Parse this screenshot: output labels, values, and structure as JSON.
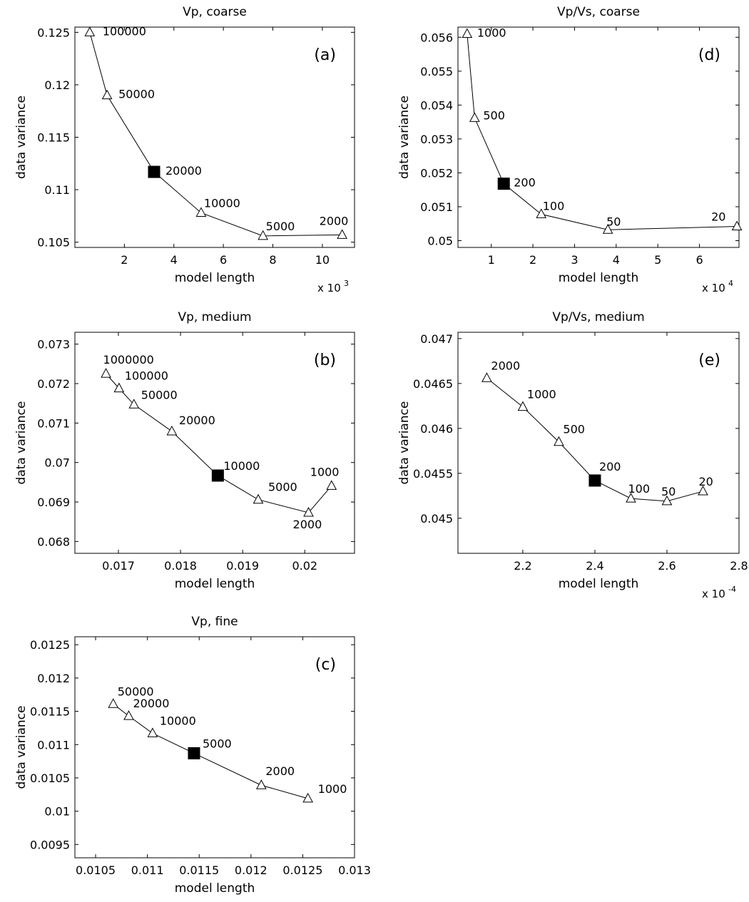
{
  "chart_data": [
    {
      "id": "a",
      "type": "line",
      "title": "Vp, coarse",
      "panel_label": "(a)",
      "xlabel": "model length",
      "ylabel": "data variance",
      "x_multiplier": "x 10",
      "x_exponent": "3",
      "xlim": [
        0,
        11.3
      ],
      "ylim": [
        0.1045,
        0.1255
      ],
      "xticks": [
        2,
        4,
        6,
        8,
        10
      ],
      "yticks": [
        0.105,
        0.11,
        0.115,
        0.12,
        0.125
      ],
      "ytick_labels": [
        "0.105",
        "0.11",
        "0.115",
        "0.12",
        "0.125"
      ],
      "xtick_labels": [
        "2",
        "4",
        "6",
        "8",
        "10"
      ],
      "points": [
        {
          "x": 0.6,
          "y": 0.125,
          "label": "100000"
        },
        {
          "x": 1.3,
          "y": 0.119,
          "label": "50000"
        },
        {
          "x": 3.2,
          "y": 0.1117,
          "label": "20000",
          "selected": true
        },
        {
          "x": 5.1,
          "y": 0.1078,
          "label": "10000"
        },
        {
          "x": 7.6,
          "y": 0.1056,
          "label": "5000"
        },
        {
          "x": 10.8,
          "y": 0.1057,
          "label": "2000"
        }
      ]
    },
    {
      "id": "b",
      "type": "line",
      "title": "Vp, medium",
      "panel_label": "(b)",
      "xlabel": "model length",
      "ylabel": "data variance",
      "xlim": [
        0.0163,
        0.0208
      ],
      "ylim": [
        0.0677,
        0.0733
      ],
      "xticks": [
        0.017,
        0.018,
        0.019,
        0.02
      ],
      "xtick_labels": [
        "0.017",
        "0.018",
        "0.019",
        "0.02"
      ],
      "yticks": [
        0.068,
        0.069,
        0.07,
        0.071,
        0.072,
        0.073
      ],
      "ytick_labels": [
        "0.068",
        "0.069",
        "0.07",
        "0.071",
        "0.072",
        "0.073"
      ],
      "points": [
        {
          "x": 0.0168,
          "y": 0.07225,
          "label": "1000000"
        },
        {
          "x": 0.01701,
          "y": 0.07188,
          "label": "100000"
        },
        {
          "x": 0.01725,
          "y": 0.07147,
          "label": "50000"
        },
        {
          "x": 0.01786,
          "y": 0.07079,
          "label": "20000"
        },
        {
          "x": 0.0186,
          "y": 0.06967,
          "label": "10000",
          "selected": true
        },
        {
          "x": 0.01925,
          "y": 0.06906,
          "label": "5000"
        },
        {
          "x": 0.02006,
          "y": 0.06873,
          "label": "2000"
        },
        {
          "x": 0.02043,
          "y": 0.06941,
          "label": "1000"
        }
      ]
    },
    {
      "id": "c",
      "type": "line",
      "title": "Vp, fine",
      "panel_label": "(c)",
      "xlabel": "model length",
      "ylabel": "data variance",
      "xlim": [
        0.0103,
        0.013
      ],
      "ylim": [
        0.0093,
        0.01262
      ],
      "xticks": [
        0.0105,
        0.011,
        0.0115,
        0.012,
        0.0125,
        0.013
      ],
      "xtick_labels": [
        "0.0105",
        "0.011",
        "0.0115",
        "0.012",
        "0.0125",
        "0.013"
      ],
      "yticks": [
        0.0095,
        0.01,
        0.0105,
        0.011,
        0.0115,
        0.012,
        0.0125
      ],
      "ytick_labels": [
        "0.0095",
        "0.01",
        "0.0105",
        "0.011",
        "0.0115",
        "0.012",
        "0.0125"
      ],
      "points": [
        {
          "x": 0.01067,
          "y": 0.01161,
          "label": "50000"
        },
        {
          "x": 0.01082,
          "y": 0.01143,
          "label": "20000"
        },
        {
          "x": 0.01105,
          "y": 0.01117,
          "label": "10000"
        },
        {
          "x": 0.01145,
          "y": 0.01087,
          "label": "5000",
          "selected": true
        },
        {
          "x": 0.0121,
          "y": 0.01039,
          "label": "2000"
        },
        {
          "x": 0.01255,
          "y": 0.01019,
          "label": "1000"
        }
      ]
    },
    {
      "id": "d",
      "type": "line",
      "title": "Vp/Vs, coarse",
      "panel_label": "(d)",
      "xlabel": "model length",
      "ylabel": "data variance",
      "x_multiplier": "x 10",
      "x_exponent": "4",
      "xlim": [
        0.2,
        6.95
      ],
      "ylim": [
        0.0498,
        0.0563
      ],
      "xticks": [
        1,
        2,
        3,
        4,
        5,
        6
      ],
      "xtick_labels": [
        "1",
        "2",
        "3",
        "4",
        "5",
        "6"
      ],
      "yticks": [
        0.05,
        0.051,
        0.052,
        0.053,
        0.054,
        0.055,
        0.056
      ],
      "ytick_labels": [
        "0.05",
        "0.051",
        "0.052",
        "0.053",
        "0.054",
        "0.055",
        "0.056"
      ],
      "points": [
        {
          "x": 0.42,
          "y": 0.0561,
          "label": "1000"
        },
        {
          "x": 0.6,
          "y": 0.05362,
          "label": "500"
        },
        {
          "x": 1.3,
          "y": 0.05168,
          "label": "200",
          "selected": true
        },
        {
          "x": 2.2,
          "y": 0.05078,
          "label": "100"
        },
        {
          "x": 3.8,
          "y": 0.05032,
          "label": "50"
        },
        {
          "x": 6.9,
          "y": 0.05042,
          "label": "20"
        }
      ]
    },
    {
      "id": "e",
      "type": "line",
      "title": "Vp/Vs, medium",
      "panel_label": "(e)",
      "xlabel": "model length",
      "ylabel": "data variance",
      "x_multiplier": "x 10",
      "x_exponent": "-4",
      "xlim": [
        2.02,
        2.8
      ],
      "ylim": [
        0.04461,
        0.04707
      ],
      "xticks": [
        2.2,
        2.4,
        2.6,
        2.8
      ],
      "xtick_labels": [
        "2.2",
        "2.4",
        "2.6",
        "2.8"
      ],
      "yticks": [
        0.045,
        0.0455,
        0.046,
        0.0465,
        0.047
      ],
      "ytick_labels": [
        "0.045",
        "0.0455",
        "0.046",
        "0.0465",
        "0.047"
      ],
      "points": [
        {
          "x": 2.1,
          "y": 0.04656,
          "label": "2000"
        },
        {
          "x": 2.2,
          "y": 0.04624,
          "label": "1000"
        },
        {
          "x": 2.3,
          "y": 0.04585,
          "label": "500"
        },
        {
          "x": 2.4,
          "y": 0.04542,
          "label": "200",
          "selected": true
        },
        {
          "x": 2.5,
          "y": 0.04522,
          "label": "100"
        },
        {
          "x": 2.6,
          "y": 0.04519,
          "label": "50"
        },
        {
          "x": 2.7,
          "y": 0.0453,
          "label": "20"
        }
      ]
    }
  ]
}
